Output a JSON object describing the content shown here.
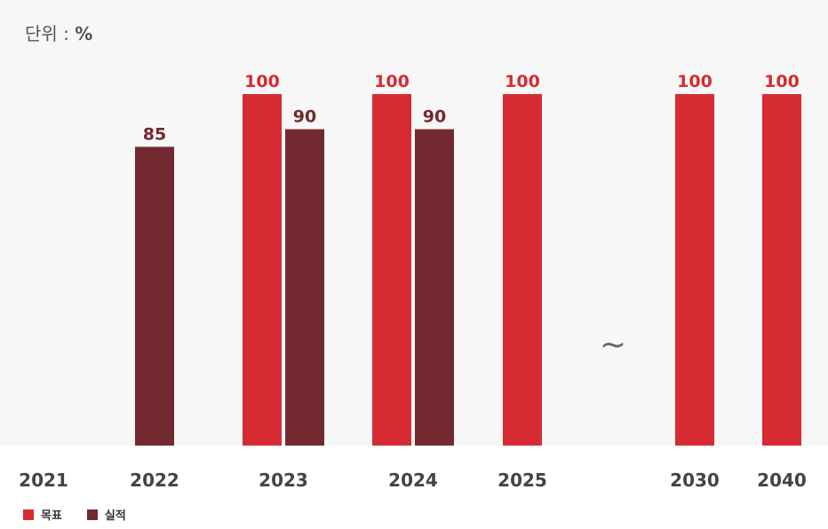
{
  "unit": {
    "prefix": "단위 :",
    "value": "%"
  },
  "legend": {
    "target_label": "목표",
    "actual_label": "실적"
  },
  "colors": {
    "target": "#d62b32",
    "actual": "#722930",
    "plot_bg": "#f7f7f7",
    "year_text": "#444444"
  },
  "break_symbol": "~",
  "chart_data": {
    "type": "bar",
    "categories": [
      "2021",
      "2022",
      "2023",
      "2024",
      "2025",
      "2030",
      "2040"
    ],
    "series": [
      {
        "name": "목표",
        "values": [
          null,
          null,
          100,
          100,
          100,
          100,
          100
        ]
      },
      {
        "name": "실적",
        "values": [
          null,
          85,
          90,
          90,
          null,
          null,
          null
        ]
      }
    ],
    "ylim": [
      0,
      100
    ],
    "ylabel": "",
    "xlabel": "",
    "legend_position": "bottom-left",
    "grid": false
  }
}
